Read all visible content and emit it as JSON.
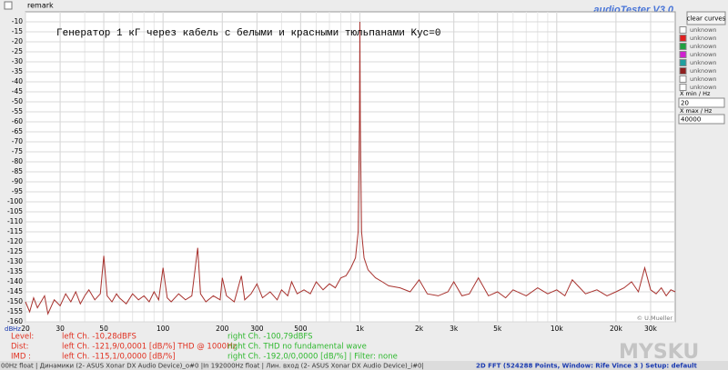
{
  "top_bar": {
    "remark": "remark",
    "app_title": "audioTester  V3.0"
  },
  "chart_data": {
    "type": "line",
    "annotation": "Генератор 1 кГ через кабель с белыми и красными тюльпанами Kус=0",
    "x_unit": "Hz",
    "y_unit": "dB",
    "credit": "© U.Mueller",
    "log_x": true,
    "grid": true,
    "xlim": [
      20,
      40000
    ],
    "ylim": [
      -160,
      -5
    ],
    "xticks": [
      20,
      30,
      50,
      100,
      200,
      300,
      500,
      {
        "value": 1000,
        "label": "1k"
      },
      {
        "value": 2000,
        "label": "2k"
      },
      {
        "value": 3000,
        "label": "3k"
      },
      {
        "value": 5000,
        "label": "5k"
      },
      {
        "value": 10000,
        "label": "10k"
      },
      {
        "value": 20000,
        "label": "20k"
      },
      {
        "value": 30000,
        "label": "30k"
      }
    ],
    "yticks": [
      -10,
      -15,
      -20,
      -25,
      -30,
      -35,
      -40,
      -45,
      -50,
      -55,
      -60,
      -65,
      -70,
      -75,
      -80,
      -85,
      -90,
      -95,
      -100,
      -105,
      -110,
      -115,
      -120,
      -125,
      -130,
      -135,
      -140,
      -145,
      -150,
      -155,
      -160
    ],
    "x": [
      20,
      21,
      22,
      23,
      25,
      26,
      28,
      30,
      32,
      34,
      36,
      38,
      40,
      42,
      45,
      48,
      50,
      52,
      55,
      58,
      60,
      65,
      70,
      75,
      80,
      85,
      90,
      95,
      100,
      105,
      110,
      120,
      130,
      140,
      150,
      155,
      165,
      180,
      195,
      200,
      210,
      230,
      250,
      260,
      280,
      300,
      320,
      350,
      380,
      400,
      430,
      450,
      480,
      520,
      560,
      600,
      650,
      700,
      750,
      800,
      850,
      900,
      950,
      980,
      995,
      1000,
      1005,
      1020,
      1050,
      1100,
      1200,
      1300,
      1400,
      1600,
      1800,
      2000,
      2200,
      2500,
      2800,
      3000,
      3300,
      3600,
      4000,
      4500,
      5000,
      5500,
      6000,
      7000,
      8000,
      9000,
      10000,
      11000,
      12000,
      14000,
      16000,
      18000,
      20000,
      22000,
      24000,
      26000,
      28000,
      30000,
      32000,
      34000,
      36000,
      38000,
      40000
    ],
    "series": [
      {
        "color": "#a8322e",
        "values": [
          -150,
          -155,
          -148,
          -153,
          -147,
          -156,
          -149,
          -152,
          -146,
          -150,
          -145,
          -151,
          -147,
          -144,
          -149,
          -146,
          -127,
          -147,
          -150,
          -146,
          -148,
          -151,
          -146,
          -149,
          -147,
          -150,
          -145,
          -149,
          -133,
          -148,
          -150,
          -146,
          -149,
          -147,
          -123,
          -146,
          -150,
          -147,
          -149,
          -138,
          -147,
          -150,
          -137,
          -149,
          -146,
          -141,
          -148,
          -145,
          -149,
          -144,
          -147,
          -140,
          -146,
          -144,
          -146,
          -140,
          -144,
          -141,
          -143,
          -138,
          -137,
          -133,
          -128,
          -115,
          -60,
          -10,
          -60,
          -115,
          -128,
          -134,
          -138,
          -140,
          -142,
          -143,
          -145,
          -139,
          -146,
          -147,
          -145,
          -140,
          -147,
          -146,
          -138,
          -147,
          -145,
          -148,
          -144,
          -147,
          -143,
          -146,
          -144,
          -147,
          -139,
          -146,
          -144,
          -147,
          -145,
          -143,
          -140,
          -145,
          -133,
          -144,
          -146,
          -143,
          -147,
          -144,
          -145
        ]
      }
    ]
  },
  "panel": {
    "button": "clear curves",
    "curves": [
      {
        "label": "unknown",
        "color": "#ffffff"
      },
      {
        "label": "unknown",
        "color": "#e02020"
      },
      {
        "label": "unknown",
        "color": "#20a040"
      },
      {
        "label": "unknown",
        "color": "#d020d0"
      },
      {
        "label": "unknown",
        "color": "#20a0a0"
      },
      {
        "label": "unknown",
        "color": "#902020"
      },
      {
        "label": "unknown",
        "color": "#ffffff"
      },
      {
        "label": "unknown",
        "color": "#ffffff"
      }
    ],
    "xmin_label": "X min / Hz",
    "xmin": "20",
    "xmax_label": "X max / Hz",
    "xmax": "40000"
  },
  "stats": {
    "rows": [
      [
        "Level:",
        "left Ch. -10,28dBFS",
        "right Ch. -100,79dBFS"
      ],
      [
        "Dist:",
        "left Ch. -121,9/0,0001 [dB/%] THD @ 1000Hz",
        "right Ch. THD no fundamental wave"
      ],
      [
        "IMD :",
        "left Ch. -115,1/0,0000 [dB/%]",
        "right Ch. -192,0/0,0000 [dB/%]  |   Filter: none"
      ]
    ]
  },
  "status_bar": {
    "left": "00Hz float | Динамики (2- ASUS Xonar DX Audio Device)_o#0 |In 192000Hz float  | Лин. вход (2- ASUS Xonar DX Audio Device)_i#0|",
    "right": "2D FFT (524288 Points, Window: Rife Vince 3 )  Setup:  default"
  },
  "watermark": "MYSKU"
}
